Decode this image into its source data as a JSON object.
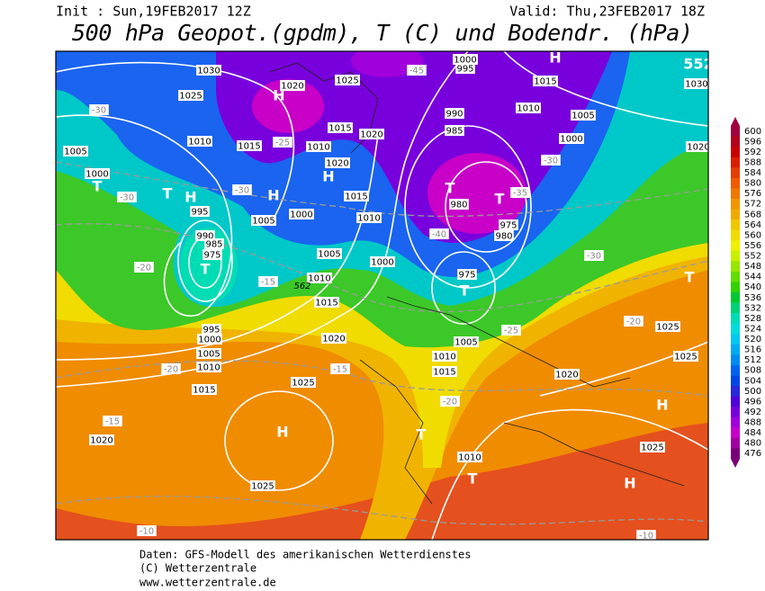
{
  "header": {
    "init": "Init : Sun,19FEB2017 12Z",
    "valid": "Valid: Thu,23FEB2017 18Z",
    "title": "500 hPa Geopot.(gpdm), T (C) und Bodendr. (hPa)"
  },
  "legend": [
    {
      "value": 600,
      "color": "#a0003c"
    },
    {
      "value": 596,
      "color": "#b4001e"
    },
    {
      "value": 592,
      "color": "#c80000"
    },
    {
      "value": 588,
      "color": "#dc1e00"
    },
    {
      "value": 584,
      "color": "#e63c00"
    },
    {
      "value": 580,
      "color": "#f05a00"
    },
    {
      "value": 576,
      "color": "#f07800"
    },
    {
      "value": 572,
      "color": "#f09600"
    },
    {
      "value": 568,
      "color": "#f0aa00"
    },
    {
      "value": 564,
      "color": "#f0c800"
    },
    {
      "value": 560,
      "color": "#f0dc00"
    },
    {
      "value": 556,
      "color": "#f0f000"
    },
    {
      "value": 552,
      "color": "#c8f000"
    },
    {
      "value": 548,
      "color": "#96e600"
    },
    {
      "value": 544,
      "color": "#64dc00"
    },
    {
      "value": 540,
      "color": "#32d200"
    },
    {
      "value": 536,
      "color": "#00c832"
    },
    {
      "value": 532,
      "color": "#00d278"
    },
    {
      "value": 528,
      "color": "#00dcb4"
    },
    {
      "value": 524,
      "color": "#00dcdc"
    },
    {
      "value": 520,
      "color": "#00c8f0"
    },
    {
      "value": 516,
      "color": "#00aaf0"
    },
    {
      "value": 512,
      "color": "#008cf0"
    },
    {
      "value": 508,
      "color": "#0064f0"
    },
    {
      "value": 504,
      "color": "#0046e6"
    },
    {
      "value": 500,
      "color": "#2828dc"
    },
    {
      "value": 496,
      "color": "#5000dc"
    },
    {
      "value": 492,
      "color": "#7800dc"
    },
    {
      "value": 488,
      "color": "#a000dc"
    },
    {
      "value": 484,
      "color": "#c800c8"
    },
    {
      "value": 480,
      "color": "#a000a0"
    },
    {
      "value": 476,
      "color": "#780078"
    }
  ],
  "map_labels": [
    "1030",
    "1025",
    "1020",
    "1015",
    "1010",
    "1005",
    "1000",
    "995",
    "990",
    "985",
    "975",
    "1005",
    "1000",
    "1010",
    "1005",
    "1010",
    "1015",
    "1020",
    "1025",
    "1025",
    "1020",
    "1015",
    "1010",
    "1005",
    "1000",
    "995",
    "1000",
    "990",
    "985",
    "980",
    "975",
    "980",
    "975",
    "1000",
    "1005",
    "1010",
    "1015",
    "995",
    "1000",
    "1020",
    "1015",
    "1025",
    "1010",
    "1020",
    "1015",
    "1005",
    "1010",
    "1015",
    "1020",
    "1025",
    "1025",
    "1025",
    "1010",
    "1030",
    "1020",
    "-30",
    "-30",
    "-25",
    "-30",
    "-20",
    "-15",
    "-20",
    "-15",
    "-10",
    "-15",
    "-20",
    "-30",
    "-35",
    "-40",
    "-45",
    "-30",
    "-25",
    "-20",
    "-10",
    "H",
    "H",
    "H",
    "H",
    "H",
    "H",
    "H",
    "H",
    "T",
    "T",
    "T",
    "T",
    "T",
    "T",
    "T",
    "T",
    "T",
    "552",
    "562"
  ],
  "footer": [
    "Daten: GFS-Modell des amerikanischen Wetterdienstes",
    "(C) Wetterzentrale",
    "www.wetterzentrale.de"
  ]
}
